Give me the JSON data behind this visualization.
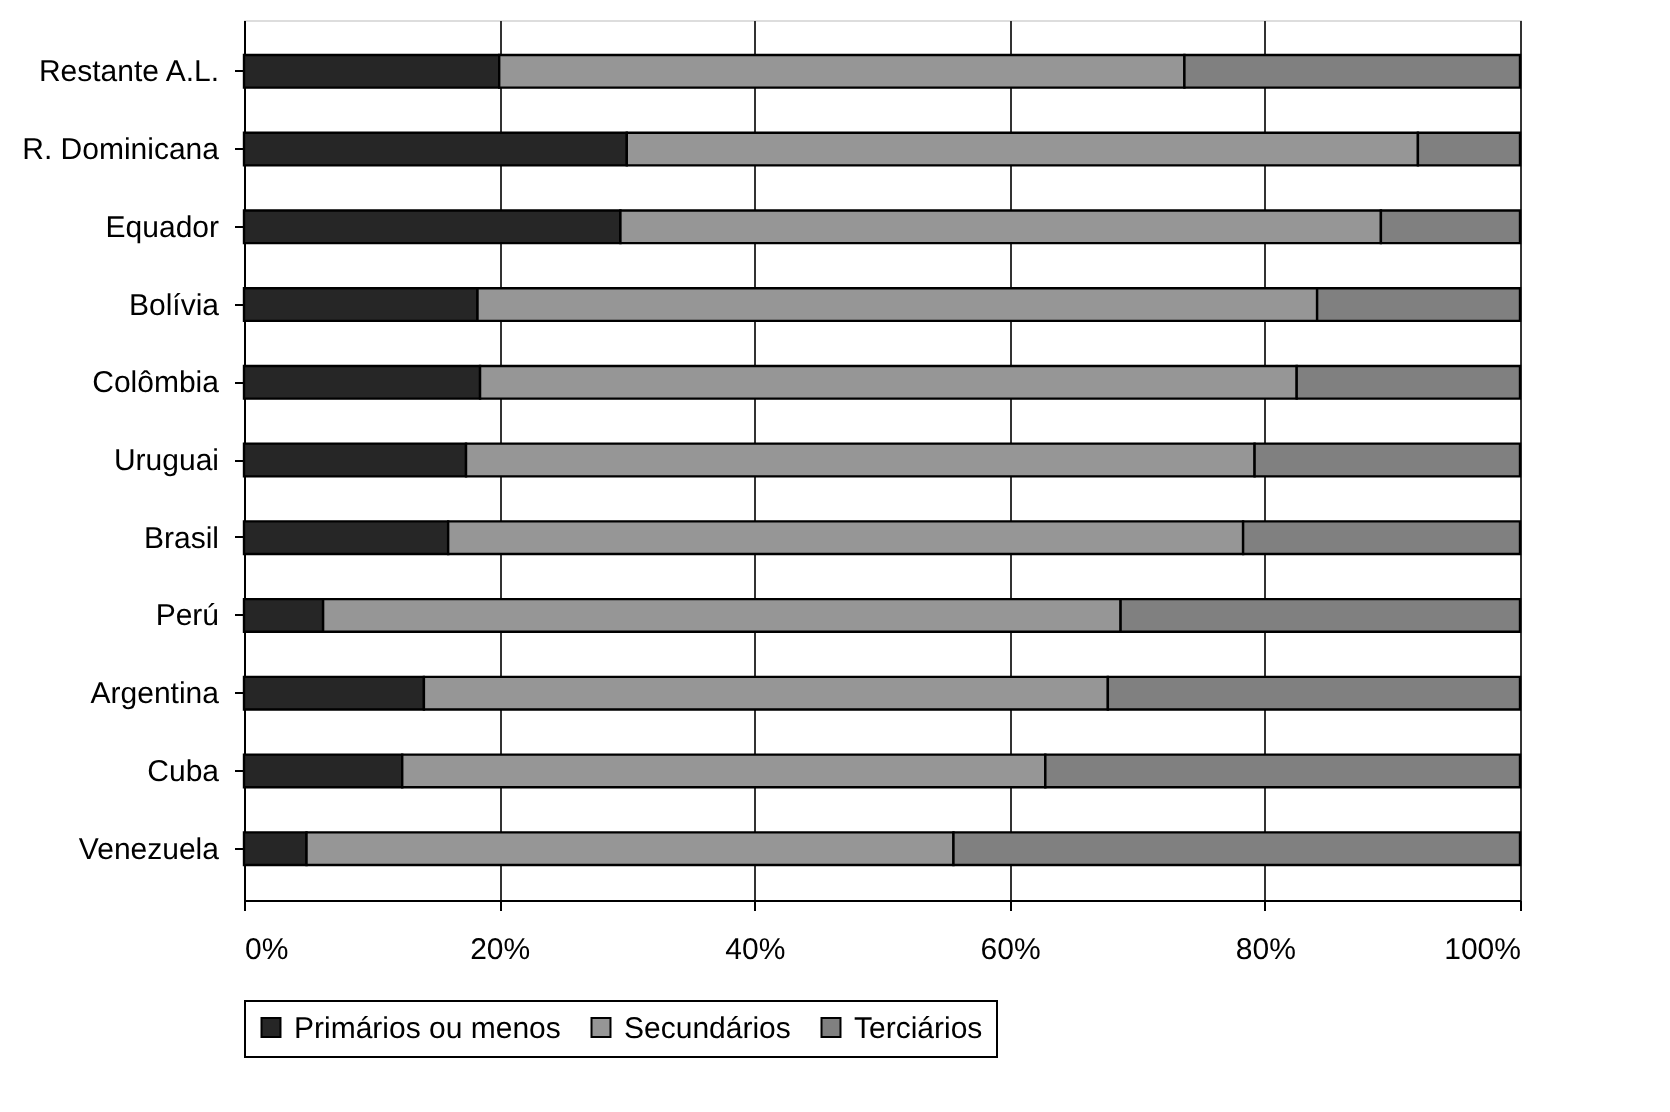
{
  "chart_data": {
    "type": "bar",
    "orientation": "horizontal",
    "stacked": true,
    "categories": [
      "Restante A.L.",
      "R. Dominicana",
      "Equador",
      "Bolívia",
      "Colômbia",
      "Uruguai",
      "Brasil",
      "Perú",
      "Argentina",
      "Cuba",
      "Venezuela"
    ],
    "series": [
      {
        "name": "Primários ou menos",
        "color": "#262626",
        "values": [
          20,
          30,
          29.5,
          18.3,
          18.5,
          17.4,
          16,
          6.2,
          14.1,
          12.4,
          4.9
        ]
      },
      {
        "name": "Secundários",
        "color": "#969696",
        "values": [
          53.7,
          62,
          59.6,
          65.8,
          64,
          61.8,
          62.3,
          62.5,
          53.6,
          50.4,
          50.7
        ]
      },
      {
        "name": "Terciários",
        "color": "#808080",
        "values": [
          26.3,
          8,
          10.9,
          15.9,
          17.5,
          20.8,
          21.7,
          31.3,
          32.3,
          37.2,
          44.4
        ]
      }
    ],
    "xlim": [
      0,
      100
    ],
    "xticks": [
      {
        "value": 0,
        "label": "0%"
      },
      {
        "value": 20,
        "label": "20%"
      },
      {
        "value": 40,
        "label": "40%"
      },
      {
        "value": 60,
        "label": "60%"
      },
      {
        "value": 80,
        "label": "80%"
      },
      {
        "value": 100,
        "label": "100%"
      }
    ],
    "grid": "x",
    "legend": "bottom"
  }
}
